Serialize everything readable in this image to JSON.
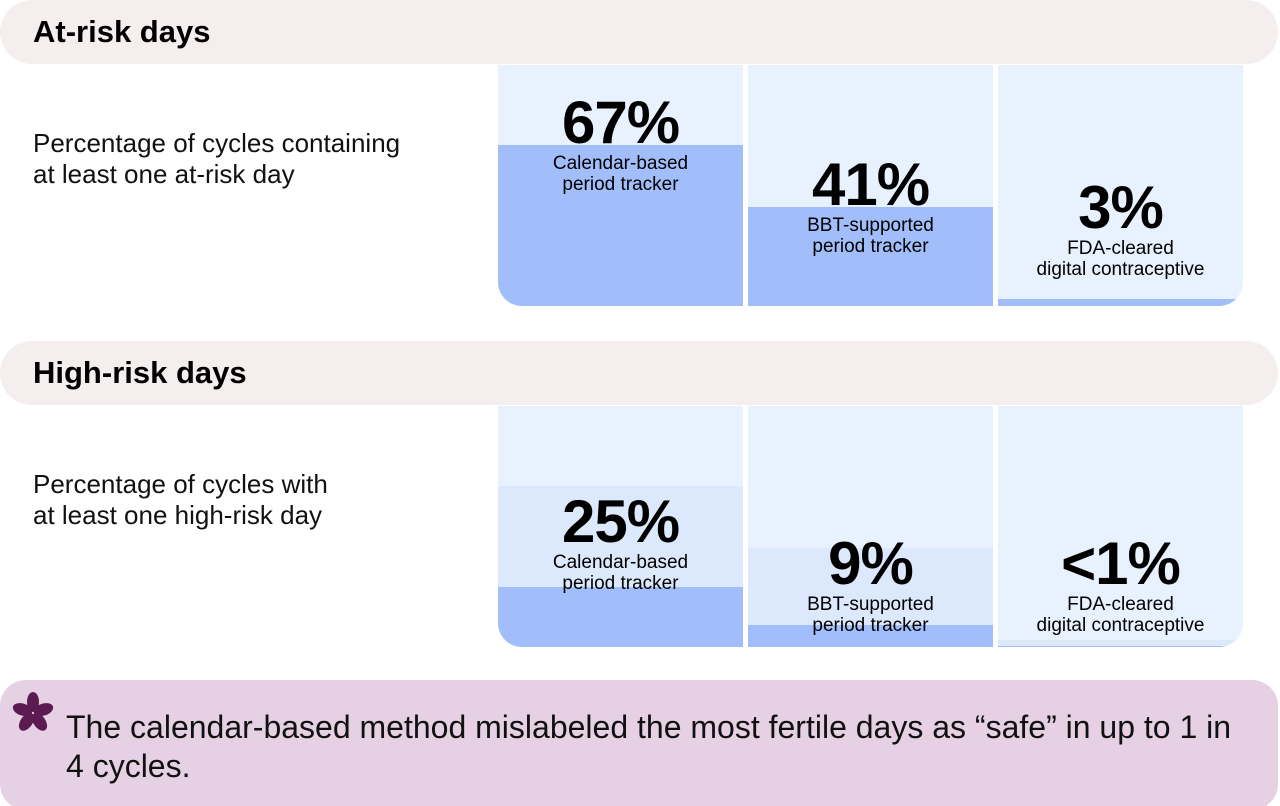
{
  "chart_data": [
    {
      "type": "bar",
      "title": "At-risk days",
      "subtitle": "Percentage of cycles containing\nat least one at-risk day",
      "categories": [
        "Calendar-based\nperiod tracker",
        "BBT-supported\nperiod tracker",
        "FDA-cleared\ndigital contraceptive"
      ],
      "values": [
        67,
        41,
        3
      ],
      "value_labels": [
        "67%",
        "41%",
        "3%"
      ],
      "ylim": [
        0,
        100
      ],
      "color": "#a1befa"
    },
    {
      "type": "bar",
      "title": "High-risk days",
      "subtitle": "Percentage of cycles with\nat least one high-risk day",
      "categories": [
        "Calendar-based\nperiod tracker",
        "BBT-supported\nperiod tracker",
        "FDA-cleared\ndigital contraceptive"
      ],
      "values": [
        25,
        9,
        0.5
      ],
      "value_labels": [
        "25%",
        "9%",
        "<1%"
      ],
      "ylim": [
        0,
        100
      ],
      "color": "#a1befa"
    }
  ],
  "callout": "The calendar-based method mislabeled the most fertile days as “safe” in up to 1 in 4 cycles."
}
